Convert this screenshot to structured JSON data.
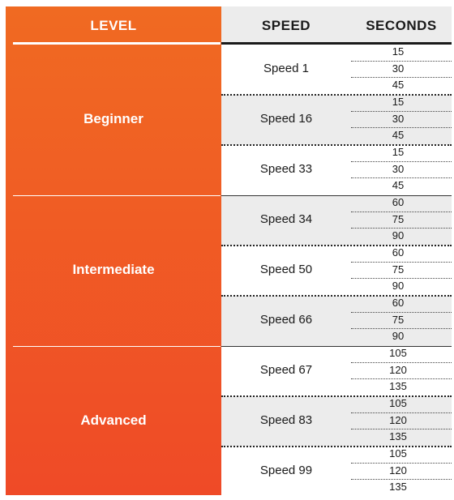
{
  "headers": {
    "level": "LEVEL",
    "speed": "SPEED",
    "seconds": "SECONDS"
  },
  "levels": [
    {
      "name": "Beginner",
      "rows": [
        {
          "speed": "Speed 1",
          "seconds": [
            "15",
            "30",
            "45"
          ]
        },
        {
          "speed": "Speed 16",
          "seconds": [
            "15",
            "30",
            "45"
          ]
        },
        {
          "speed": "Speed 33",
          "seconds": [
            "15",
            "30",
            "45"
          ]
        }
      ]
    },
    {
      "name": "Intermediate",
      "rows": [
        {
          "speed": "Speed 34",
          "seconds": [
            "60",
            "75",
            "90"
          ]
        },
        {
          "speed": "Speed 50",
          "seconds": [
            "60",
            "75",
            "90"
          ]
        },
        {
          "speed": "Speed 66",
          "seconds": [
            "60",
            "75",
            "90"
          ]
        }
      ]
    },
    {
      "name": "Advanced",
      "rows": [
        {
          "speed": "Speed 67",
          "seconds": [
            "105",
            "120",
            "135"
          ]
        },
        {
          "speed": "Speed 83",
          "seconds": [
            "105",
            "120",
            "135"
          ]
        },
        {
          "speed": "Speed 99",
          "seconds": [
            "105",
            "120",
            "135"
          ]
        }
      ]
    }
  ],
  "colors": {
    "accent_top": "#f06a22",
    "accent_bottom": "#ef4a27",
    "band_grey": "#ececec"
  }
}
